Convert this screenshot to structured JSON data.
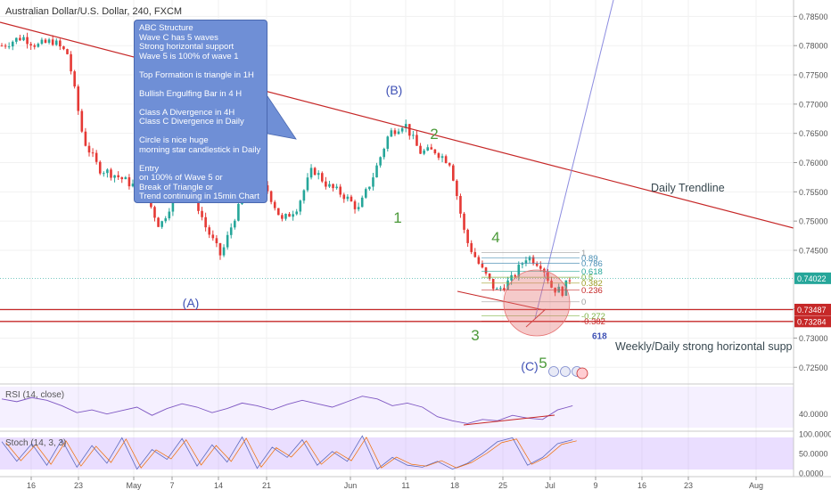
{
  "chart_data": {
    "type": "candlestick",
    "title": "Australian Dollar/U.S. Dollar, 240, FXCM",
    "price_axis": {
      "ylim": [
        0.7223,
        0.7878
      ],
      "ticks": [
        "0.78500",
        "0.78000",
        "0.77500",
        "0.77000",
        "0.76500",
        "0.76000",
        "0.75500",
        "0.75000",
        "0.74500",
        "0.73500",
        "0.73000",
        "0.72500"
      ],
      "markers": [
        {
          "label": "0.74022",
          "value": 0.74022,
          "color": "#26a69a"
        },
        {
          "label": "0.73487",
          "value": 0.73487,
          "color": "#c62828"
        },
        {
          "label": "0.73284",
          "value": 0.73284,
          "color": "#c62828"
        }
      ]
    },
    "x_ticks": [
      "16",
      "23",
      "May",
      "7",
      "14",
      "21",
      "Jun",
      "11",
      "18",
      "25",
      "Jul",
      "9",
      "16",
      "23",
      "Aug"
    ],
    "price_path": [
      [
        0,
        0.78
      ],
      [
        4,
        0.7815
      ],
      [
        7,
        0.78
      ],
      [
        10,
        0.7808
      ],
      [
        13,
        0.7785
      ],
      [
        16,
        0.764
      ],
      [
        19,
        0.759
      ],
      [
        22,
        0.758
      ],
      [
        25,
        0.7565
      ],
      [
        28,
        0.755
      ],
      [
        31,
        0.749
      ],
      [
        34,
        0.7545
      ],
      [
        37,
        0.756
      ],
      [
        40,
        0.749
      ],
      [
        43,
        0.744
      ],
      [
        46,
        0.7515
      ],
      [
        49,
        0.756
      ],
      [
        52,
        0.7555
      ],
      [
        55,
        0.75
      ],
      [
        58,
        0.7525
      ],
      [
        61,
        0.759
      ],
      [
        64,
        0.756
      ],
      [
        67,
        0.7545
      ],
      [
        70,
        0.752
      ],
      [
        73,
        0.758
      ],
      [
        76,
        0.765
      ],
      [
        79,
        0.7668
      ],
      [
        82,
        0.7618
      ],
      [
        85,
        0.762
      ],
      [
        88,
        0.76
      ],
      [
        91,
        0.747
      ],
      [
        94,
        0.742
      ],
      [
        97,
        0.738
      ],
      [
        100,
        0.74
      ],
      [
        103,
        0.744
      ],
      [
        106,
        0.7425
      ],
      [
        108,
        0.7385
      ],
      [
        110,
        0.738
      ],
      [
        112,
        0.741
      ]
    ],
    "horizontal_lines": [
      {
        "value": 0.73487,
        "color": "#c62828"
      },
      {
        "value": 0.73284,
        "color": "#c62828"
      }
    ],
    "trendlines": [
      {
        "label": "Daily Trendline",
        "color": "#c62828"
      }
    ],
    "fibonacci": [
      {
        "label": "1",
        "value": 0.7446,
        "color": "#9e9e9e"
      },
      {
        "label": "0.89",
        "value": 0.7437,
        "color": "#4a8fb5"
      },
      {
        "label": "0.786",
        "value": 0.7428,
        "color": "#4a8fb5"
      },
      {
        "label": "0.618",
        "value": 0.7414,
        "color": "#26a69a"
      },
      {
        "label": "0.5",
        "value": 0.7404,
        "color": "#7cb342"
      },
      {
        "label": "0.382",
        "value": 0.7394,
        "color": "#9e9d24"
      },
      {
        "label": "0.236",
        "value": 0.7382,
        "color": "#c62828"
      },
      {
        "label": "0",
        "value": 0.7362,
        "color": "#9e9e9e"
      },
      {
        "label": "-0.272",
        "value": 0.7338,
        "color": "#7cb342"
      },
      {
        "label": "-0.382",
        "value": 0.7329,
        "color": "#c62828"
      },
      {
        "label": "618",
        "value": 0.7304,
        "color": "#3f51b5"
      }
    ],
    "wave_labels": [
      {
        "text": "(A)",
        "color": "#3f51b5"
      },
      {
        "text": "(B)",
        "color": "#3f51b5"
      },
      {
        "text": "(C)",
        "color": "#3f51b5"
      },
      {
        "text": "1",
        "color": "#4c9a3a"
      },
      {
        "text": "2",
        "color": "#4c9a3a"
      },
      {
        "text": "3",
        "color": "#4c9a3a"
      },
      {
        "text": "4",
        "color": "#4c9a3a"
      },
      {
        "text": "5",
        "color": "#4c9a3a"
      }
    ],
    "annotations": [
      "Daily Trendline",
      "Weekly/Daily strong horizontal supp"
    ],
    "note": [
      "ABC Structure",
      "Wave C has 5 waves",
      "Strong horizontal support",
      "Wave 5 is 100% of wave 1",
      "",
      "Top Formation is triangle in 1H",
      "",
      "Bullish Engulfing Bar in 4 H",
      "",
      "Class A Divergence in 4H",
      "Class C Divergence in Daily",
      "",
      "Circle is nice huge",
      "morning star candlestick in Daily",
      "",
      "Entry",
      "on 100% of Wave 5 or",
      "Break of Triangle or",
      "Trend continuing in 15min Chart"
    ],
    "rsi": {
      "label": "RSI (14, close)",
      "ticks": [
        "40.0000"
      ],
      "values": [
        62,
        58,
        64,
        60,
        52,
        42,
        46,
        40,
        45,
        50,
        38,
        48,
        55,
        50,
        42,
        48,
        56,
        52,
        46,
        54,
        60,
        55,
        50,
        58,
        66,
        62,
        52,
        56,
        50,
        36,
        30,
        26,
        32,
        30,
        38,
        34,
        32,
        46,
        52
      ]
    },
    "stoch": {
      "label": "Stoch (14, 3, 3)",
      "ticks": [
        "100.0000",
        "50.0000",
        "0.0000"
      ],
      "values": [
        80,
        30,
        75,
        20,
        85,
        15,
        70,
        25,
        90,
        10,
        60,
        35,
        88,
        18,
        72,
        28,
        92,
        12,
        66,
        40,
        85,
        20,
        55,
        30,
        95,
        10,
        40,
        20,
        15,
        30,
        10,
        25,
        50,
        80,
        90,
        20,
        40,
        75,
        85
      ]
    }
  }
}
